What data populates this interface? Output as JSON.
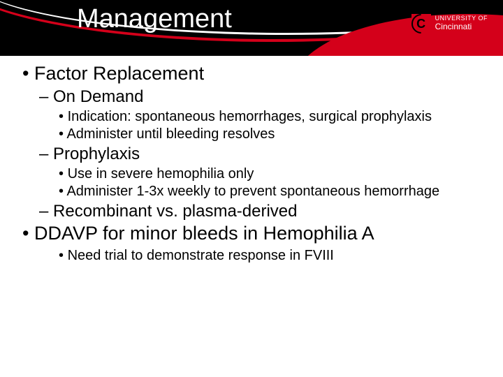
{
  "header": {
    "title": "Management",
    "logo_line1": "UNIVERSITY OF",
    "logo_line2": "Cincinnati",
    "title_color": "#ffffff",
    "bg_color": "#000000",
    "accent_color": "#d4001a"
  },
  "content": {
    "b1_1": "Factor Replacement",
    "b2_1": "On Demand",
    "b3_1": "Indication:  spontaneous hemorrhages, surgical prophylaxis",
    "b3_2": "Administer until bleeding resolves",
    "b2_2": "Prophylaxis",
    "b3_3": "Use in severe hemophilia only",
    "b3_4": "Administer 1-3x weekly to prevent spontaneous hemorrhage",
    "b2_3": "Recombinant vs. plasma-derived",
    "b1_2": "DDAVP for minor bleeds in Hemophilia A",
    "b3_5": "Need trial to demonstrate response in FVIII"
  },
  "style": {
    "body_font": "Arial",
    "body_color": "#000000",
    "bg": "#ffffff",
    "l1_fontsize": 27,
    "l2_fontsize": 24,
    "l3_fontsize": 20
  }
}
